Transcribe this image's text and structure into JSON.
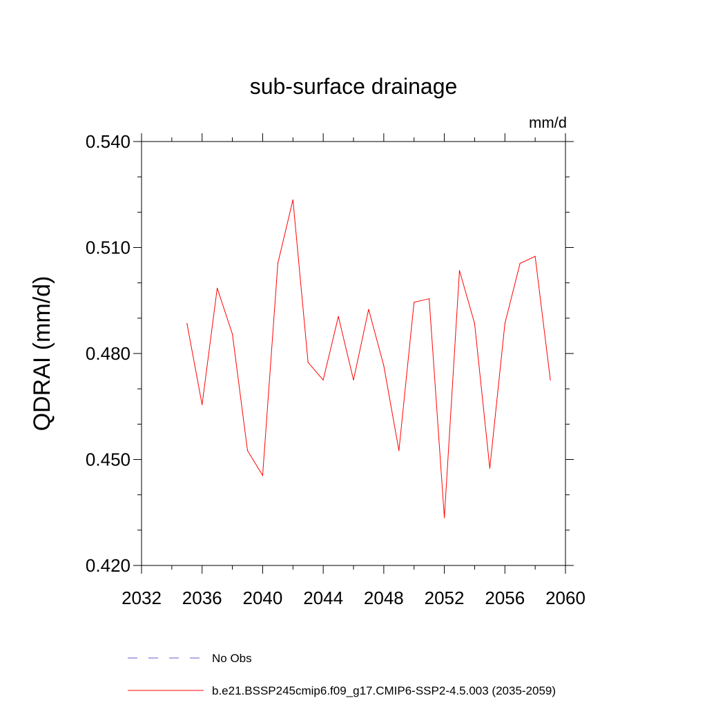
{
  "chart_data": {
    "type": "line",
    "title": "sub-surface drainage",
    "units_label": "mm/d",
    "ylabel": "QDRAI  (mm/d)",
    "xlabel": "",
    "xlim": [
      2032,
      2060
    ],
    "ylim": [
      0.42,
      0.54
    ],
    "x_ticks": [
      2032,
      2036,
      2040,
      2044,
      2048,
      2052,
      2056,
      2060
    ],
    "x_tick_labels": [
      "2032",
      "2036",
      "2040",
      "2044",
      "2048",
      "2052",
      "2056",
      "2060"
    ],
    "x_minor_step": 2,
    "y_ticks": [
      0.42,
      0.45,
      0.48,
      0.51,
      0.54
    ],
    "y_tick_labels": [
      "0.420",
      "0.450",
      "0.480",
      "0.510",
      "0.540"
    ],
    "y_minor_step": 0.01,
    "grid": false,
    "legend_position": "bottom",
    "series": [
      {
        "name": "b.e21.BSSP245cmip6.f09_g17.CMIP6-SSP2-4.5.003 (2035-2059)",
        "color": "#ff0000",
        "style": "solid",
        "x": [
          2035,
          2036,
          2037,
          2038,
          2039,
          2040,
          2041,
          2042,
          2043,
          2044,
          2045,
          2046,
          2047,
          2048,
          2049,
          2050,
          2051,
          2052,
          2053,
          2054,
          2055,
          2056,
          2057,
          2058,
          2059
        ],
        "y": [
          0.4885,
          0.4655,
          0.4985,
          0.4855,
          0.4525,
          0.4455,
          0.5055,
          0.5235,
          0.4775,
          0.4725,
          0.4905,
          0.4725,
          0.4925,
          0.4765,
          0.4525,
          0.4945,
          0.4955,
          0.4335,
          0.5035,
          0.4885,
          0.4475,
          0.4885,
          0.5055,
          0.5075,
          0.4725
        ]
      }
    ],
    "legend": [
      {
        "label": "No Obs",
        "color": "#6a5acd",
        "style": "dashed"
      },
      {
        "label": "b.e21.BSSP245cmip6.f09_g17.CMIP6-SSP2-4.5.003 (2035-2059)",
        "color": "#ff0000",
        "style": "solid"
      }
    ]
  }
}
